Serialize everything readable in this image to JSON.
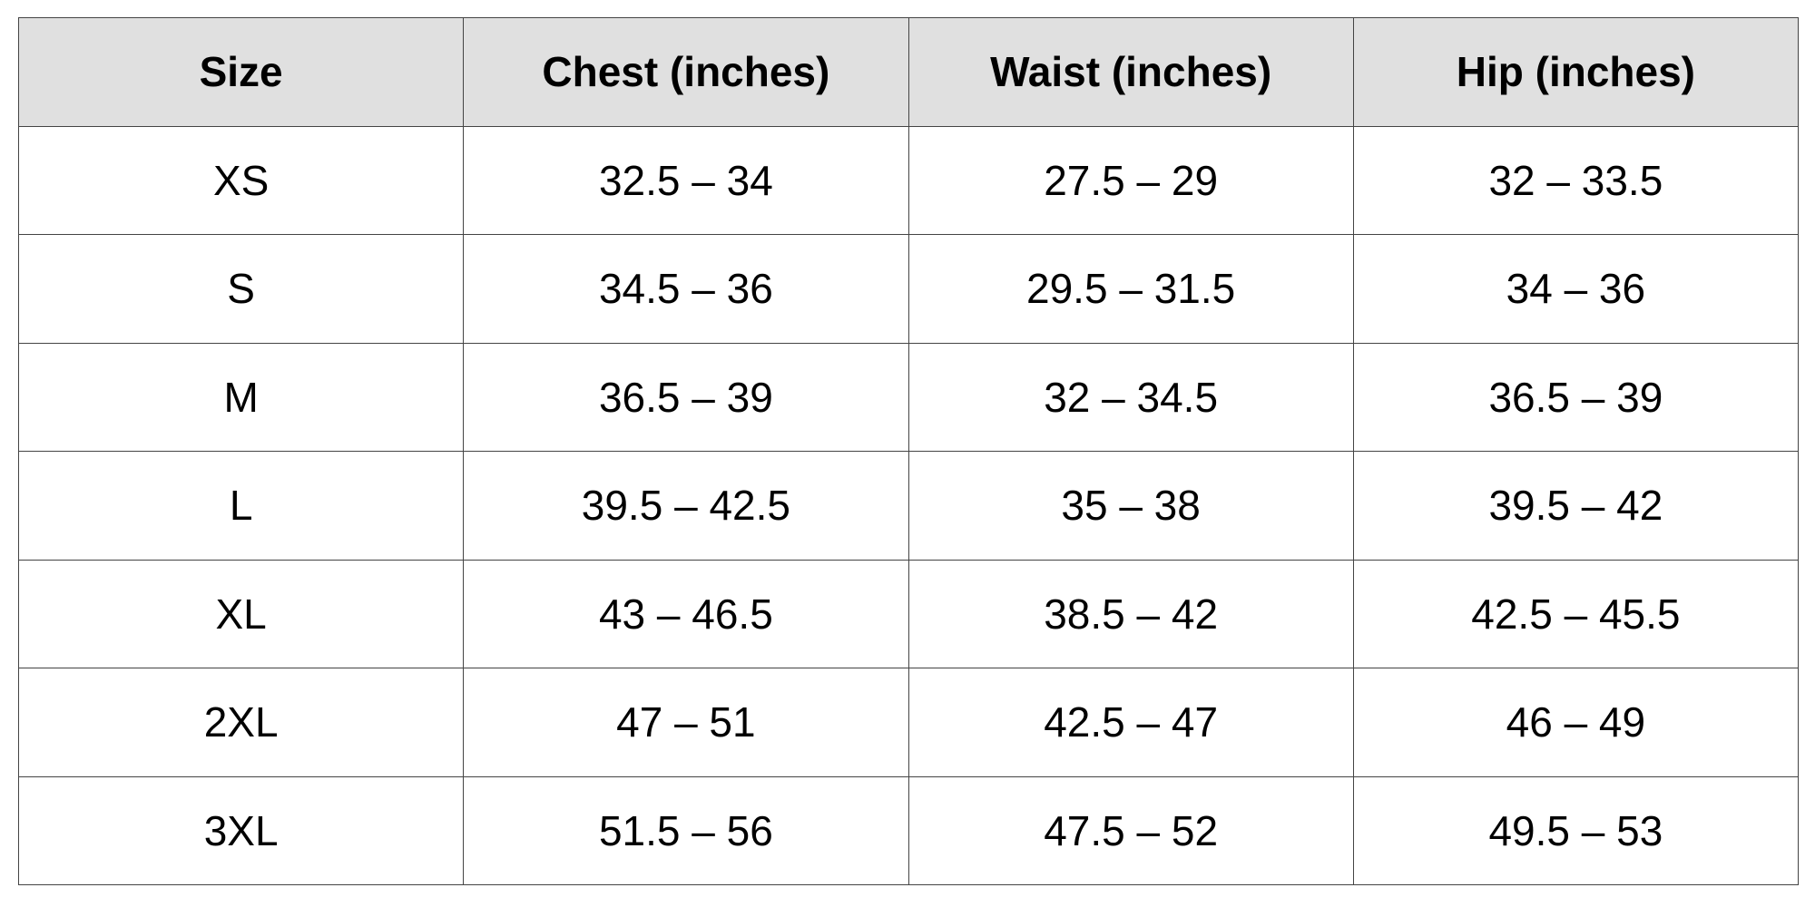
{
  "table": {
    "colors": {
      "header_background": "#e0e0e0",
      "border": "#444444",
      "text": "#000000"
    },
    "headers": [
      "Size",
      "Chest (inches)",
      "Waist (inches)",
      "Hip (inches)"
    ],
    "rows": [
      [
        "XS",
        "32.5 – 34",
        "27.5 – 29",
        "32 – 33.5"
      ],
      [
        "S",
        "34.5 – 36",
        "29.5 – 31.5",
        "34 – 36"
      ],
      [
        "M",
        "36.5 – 39",
        "32 – 34.5",
        "36.5 – 39"
      ],
      [
        "L",
        "39.5 – 42.5",
        "35 – 38",
        "39.5 – 42"
      ],
      [
        "XL",
        "43 – 46.5",
        "38.5 – 42",
        "42.5 – 45.5"
      ],
      [
        "2XL",
        "47 – 51",
        "42.5 – 47",
        "46 – 49"
      ],
      [
        "3XL",
        "51.5 – 56",
        "47.5 – 52",
        "49.5 – 53"
      ]
    ]
  }
}
